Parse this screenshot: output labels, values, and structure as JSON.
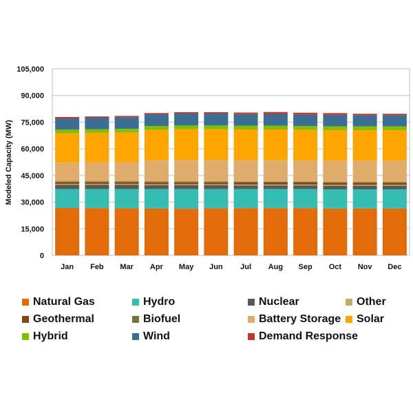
{
  "chart_data": {
    "type": "bar",
    "stacked": true,
    "title": "",
    "xlabel": "",
    "ylabel": "Modeled Capacity (MW)",
    "ylim": [
      0,
      105000
    ],
    "yticks": [
      0,
      15000,
      30000,
      45000,
      60000,
      75000,
      90000,
      105000
    ],
    "ytick_labels": [
      "0",
      "15,000",
      "30,000",
      "45,000",
      "60,000",
      "75,000",
      "90,000",
      "105,000"
    ],
    "grid": true,
    "legend_position": "bottom",
    "categories": [
      "Jan",
      "Feb",
      "Mar",
      "Apr",
      "May",
      "Jun",
      "Jul",
      "Aug",
      "Sep",
      "Oct",
      "Nov",
      "Dec"
    ],
    "series": [
      {
        "name": "Natural Gas",
        "color": "#E36C0A",
        "values": [
          26700,
          26600,
          26500,
          26400,
          26300,
          26500,
          26600,
          26600,
          26600,
          26400,
          26400,
          26400
        ]
      },
      {
        "name": "Hydro",
        "color": "#34BDB0",
        "values": [
          10600,
          10700,
          10800,
          10900,
          11000,
          10800,
          10800,
          10800,
          10800,
          10800,
          10800,
          10800
        ]
      },
      {
        "name": "Nuclear",
        "color": "#595959",
        "values": [
          2400,
          2400,
          2400,
          2200,
          2200,
          2200,
          2000,
          2000,
          2000,
          2000,
          2000,
          2000
        ]
      },
      {
        "name": "Other",
        "color": "#B5B36A",
        "values": [
          500,
          500,
          500,
          500,
          500,
          500,
          500,
          500,
          500,
          500,
          500,
          500
        ]
      },
      {
        "name": "Geothermal",
        "color": "#8B4513",
        "values": [
          1000,
          1000,
          1000,
          1000,
          1000,
          1000,
          1000,
          1000,
          1000,
          1000,
          1000,
          1000
        ]
      },
      {
        "name": "Biofuel",
        "color": "#76733A",
        "values": [
          500,
          500,
          500,
          600,
          600,
          600,
          600,
          600,
          600,
          600,
          600,
          600
        ]
      },
      {
        "name": "Battery Storage",
        "color": "#E0AC6C",
        "values": [
          10500,
          10800,
          10800,
          12000,
          12100,
          12100,
          12100,
          12100,
          12000,
          12000,
          12000,
          12000
        ]
      },
      {
        "name": "Solar",
        "color": "#FFA500",
        "values": [
          16600,
          16500,
          16700,
          17100,
          17300,
          17300,
          17300,
          17300,
          17200,
          17200,
          17200,
          17200
        ]
      },
      {
        "name": "Hybrid",
        "color": "#7FBF00",
        "values": [
          2000,
          2000,
          2000,
          2100,
          2100,
          2100,
          2100,
          2100,
          2100,
          2100,
          2100,
          2100
        ]
      },
      {
        "name": "Wind",
        "color": "#3B6E92",
        "values": [
          6300,
          6500,
          6600,
          6600,
          6700,
          6700,
          6500,
          6600,
          6500,
          6500,
          6300,
          6300
        ]
      },
      {
        "name": "Demand Response",
        "color": "#C0392B",
        "values": [
          800,
          700,
          700,
          700,
          800,
          800,
          900,
          1100,
          1000,
          1000,
          800,
          800
        ]
      }
    ]
  }
}
